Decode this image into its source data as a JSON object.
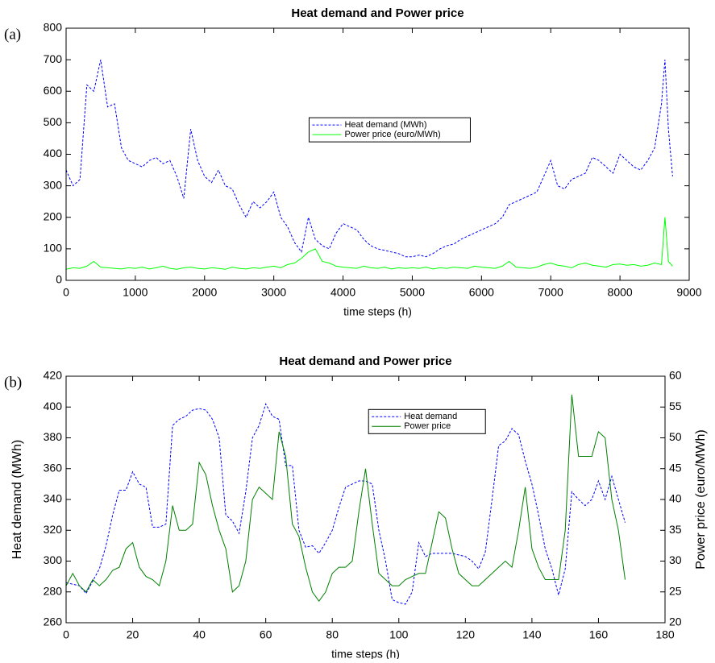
{
  "chart_data": [
    {
      "type": "line",
      "panel_label": "(a)",
      "title": "Heat demand and Power price",
      "xlabel": "time steps (h)",
      "x": [
        0,
        100,
        200,
        300,
        400,
        500,
        600,
        700,
        800,
        900,
        1000,
        1100,
        1200,
        1300,
        1400,
        1500,
        1600,
        1700,
        1800,
        1900,
        2000,
        2100,
        2200,
        2300,
        2400,
        2500,
        2600,
        2700,
        2800,
        2900,
        3000,
        3100,
        3200,
        3300,
        3400,
        3500,
        3600,
        3700,
        3800,
        3900,
        4000,
        4100,
        4200,
        4300,
        4400,
        4500,
        4600,
        4700,
        4800,
        4900,
        5000,
        5100,
        5200,
        5300,
        5400,
        5500,
        5600,
        5700,
        5800,
        5900,
        6000,
        6100,
        6200,
        6300,
        6400,
        6500,
        6600,
        6700,
        6800,
        6900,
        7000,
        7100,
        7200,
        7300,
        7400,
        7500,
        7600,
        7700,
        7800,
        7900,
        8000,
        8100,
        8200,
        8300,
        8400,
        8500,
        8600,
        8650,
        8700,
        8760
      ],
      "series": [
        {
          "name": "Heat demand (MWh)",
          "color": "#0000ff",
          "style": "dashed",
          "values": [
            350,
            300,
            320,
            620,
            600,
            700,
            550,
            560,
            420,
            380,
            370,
            360,
            380,
            390,
            370,
            380,
            330,
            260,
            480,
            380,
            330,
            310,
            350,
            300,
            290,
            240,
            200,
            250,
            230,
            250,
            280,
            200,
            170,
            120,
            90,
            200,
            130,
            110,
            100,
            150,
            180,
            170,
            160,
            130,
            110,
            100,
            95,
            90,
            85,
            75,
            75,
            80,
            75,
            85,
            100,
            110,
            115,
            130,
            140,
            150,
            160,
            170,
            180,
            200,
            240,
            250,
            260,
            270,
            280,
            330,
            380,
            300,
            290,
            320,
            330,
            340,
            390,
            380,
            360,
            340,
            400,
            380,
            360,
            350,
            380,
            420,
            560,
            700,
            480,
            330
          ]
        },
        {
          "name": "Power price (euro/MWh)",
          "color": "#00ff00",
          "style": "solid",
          "values": [
            35,
            40,
            38,
            45,
            60,
            42,
            40,
            38,
            36,
            40,
            38,
            42,
            36,
            40,
            45,
            38,
            35,
            40,
            42,
            38,
            36,
            40,
            38,
            35,
            42,
            38,
            36,
            40,
            38,
            42,
            45,
            40,
            50,
            55,
            70,
            90,
            100,
            60,
            55,
            45,
            42,
            40,
            38,
            45,
            40,
            38,
            42,
            36,
            40,
            38,
            40,
            38,
            42,
            36,
            40,
            38,
            42,
            40,
            38,
            45,
            42,
            40,
            38,
            45,
            60,
            42,
            40,
            38,
            42,
            50,
            55,
            48,
            45,
            40,
            50,
            55,
            48,
            45,
            42,
            50,
            52,
            48,
            50,
            45,
            48,
            55,
            50,
            200,
            60,
            45
          ]
        }
      ],
      "xlim": [
        0,
        9000
      ],
      "xticks": [
        0,
        1000,
        2000,
        3000,
        4000,
        5000,
        6000,
        7000,
        8000,
        9000
      ],
      "ylim": [
        0,
        800
      ],
      "yticks": [
        0,
        100,
        200,
        300,
        400,
        500,
        600,
        700,
        800
      ],
      "legend": "center"
    },
    {
      "type": "line",
      "panel_label": "(b)",
      "title": "Heat demand and Power price",
      "xlabel": "time steps (h)",
      "ylabel": "Heat demand (MWh)",
      "y2label": "Power price (euro/MWh)",
      "x": [
        0,
        2,
        4,
        6,
        8,
        10,
        12,
        14,
        16,
        18,
        20,
        22,
        24,
        26,
        28,
        30,
        32,
        34,
        36,
        38,
        40,
        42,
        44,
        46,
        48,
        50,
        52,
        54,
        56,
        58,
        60,
        62,
        64,
        66,
        68,
        70,
        72,
        74,
        76,
        78,
        80,
        82,
        84,
        86,
        88,
        90,
        92,
        94,
        96,
        98,
        100,
        102,
        104,
        106,
        108,
        110,
        112,
        114,
        116,
        118,
        120,
        122,
        124,
        126,
        128,
        130,
        132,
        134,
        136,
        138,
        140,
        142,
        144,
        146,
        148,
        150,
        152,
        154,
        156,
        158,
        160,
        162,
        164,
        166,
        168
      ],
      "series": [
        {
          "name": "Heat demand",
          "color": "#0000ff",
          "style": "dashed",
          "values": [
            286,
            285,
            284,
            279,
            287,
            295,
            310,
            330,
            346,
            346,
            358,
            350,
            348,
            322,
            322,
            324,
            388,
            392,
            394,
            398,
            399,
            398,
            392,
            380,
            330,
            326,
            318,
            345,
            380,
            388,
            402,
            394,
            392,
            362,
            362,
            320,
            309,
            310,
            305,
            312,
            320,
            335,
            348,
            350,
            352,
            352,
            350,
            320,
            300,
            275,
            273,
            272,
            280,
            312,
            303,
            305,
            305,
            305,
            305,
            304,
            303,
            300,
            295,
            306,
            340,
            375,
            378,
            386,
            382,
            365,
            350,
            330,
            308,
            295,
            278,
            295,
            345,
            340,
            336,
            340,
            352,
            340,
            355,
            340,
            325
          ]
        },
        {
          "name": "Power price",
          "color": "#008000",
          "style": "solid",
          "axis": "y2",
          "values": [
            26,
            28,
            26,
            25,
            27,
            26,
            27,
            28.5,
            29,
            32,
            33,
            29,
            27.5,
            27,
            26,
            30,
            39,
            35,
            35,
            36,
            46,
            44,
            39,
            35,
            32,
            25,
            26,
            30,
            40,
            42,
            41,
            40,
            51,
            47,
            36,
            34,
            29,
            25,
            23.5,
            25,
            28,
            29,
            29,
            30,
            38,
            45,
            36,
            28,
            27,
            26,
            26,
            27,
            27.5,
            28,
            28,
            33,
            38,
            37,
            32,
            28,
            27,
            26,
            26,
            27,
            28,
            29,
            30,
            29,
            35,
            42,
            32,
            29,
            27,
            27,
            27,
            35,
            57,
            47,
            47,
            47,
            51,
            50,
            40,
            35,
            27
          ]
        }
      ],
      "xlim": [
        0,
        180
      ],
      "xticks": [
        0,
        20,
        40,
        60,
        80,
        100,
        120,
        140,
        160,
        180
      ],
      "ylim": [
        260,
        420
      ],
      "yticks": [
        260,
        280,
        300,
        320,
        340,
        360,
        380,
        400,
        420
      ],
      "y2lim": [
        20,
        60
      ],
      "y2ticks": [
        20,
        25,
        30,
        35,
        40,
        45,
        50,
        55,
        60
      ],
      "legend": "upper center"
    }
  ]
}
